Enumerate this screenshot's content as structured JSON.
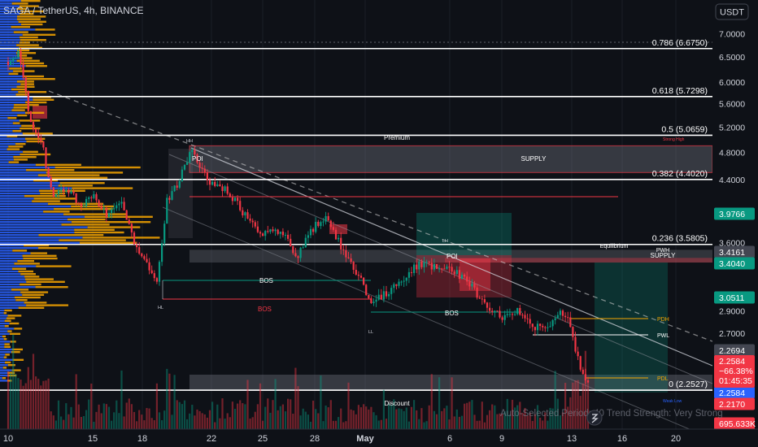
{
  "header": {
    "symbol": "SAGA / TetherUS, 4h, BINANCE",
    "currency_button": "USDT"
  },
  "fib_levels": [
    {
      "label": "0.786 (6.6750)",
      "price": 6.675
    },
    {
      "label": "0.618 (5.7298)",
      "price": 5.7298
    },
    {
      "label": "0.5 (5.0659)",
      "price": 5.0659
    },
    {
      "label": "0.382 (4.4020)",
      "price": 4.402
    },
    {
      "label": "0.236 (3.5805)",
      "price": 3.5805
    },
    {
      "label": "0 (2.2527)",
      "price": 2.2527
    }
  ],
  "annotations": {
    "premium": "Premium",
    "discount": "Discount",
    "supply_top": "SUPPLY",
    "supply_right": "SUPPLY",
    "equilibrium": "Equilibrium",
    "pwh": "PWH",
    "pdh": "PDH",
    "pwl": "PWL",
    "pdl": "PDL",
    "poi_1": "POI",
    "poi_2": "POI",
    "bos_1": "BOS",
    "bos_2": "BOS",
    "bos_3": "BOS",
    "hh": "HH",
    "hl": "HL",
    "ll": "LL",
    "lh": "LH",
    "strong_high": "Strong High",
    "weak_low": "Weak Low",
    "footer_text": "Auto-Selected Period: 40   Trend Strength: Very Strong"
  },
  "price_axis": {
    "ticks": [
      {
        "label": "7.0000",
        "price": 7.0
      },
      {
        "label": "6.5000",
        "price": 6.5
      },
      {
        "label": "6.0000",
        "price": 6.0
      },
      {
        "label": "5.6000",
        "price": 5.6
      },
      {
        "label": "5.2000",
        "price": 5.2
      },
      {
        "label": "4.8000",
        "price": 4.8
      },
      {
        "label": "4.4000",
        "price": 4.4
      },
      {
        "label": "3.6000",
        "price": 3.6
      },
      {
        "label": "2.9000",
        "price": 2.9
      },
      {
        "label": "2.7000",
        "price": 2.7
      }
    ],
    "badges": [
      {
        "label": "3.9766",
        "price": 3.9766,
        "color": "#089981"
      },
      {
        "label": "3.4161",
        "price": 3.4161,
        "color": "#434651"
      },
      {
        "label": "3.4040",
        "price": 3.404,
        "color": "#089981"
      },
      {
        "label": "3.0511",
        "price": 3.0511,
        "color": "#089981"
      },
      {
        "label": "2.2694",
        "price": 2.2694,
        "color": "#434651"
      },
      {
        "label": "2.2584",
        "price": 2.2584,
        "color": "#2962ff"
      },
      {
        "label": "2.2170",
        "price": 2.217,
        "color": "#f23645"
      },
      {
        "label": "695.633K",
        "price": 0,
        "color": "#f23645"
      }
    ],
    "last_price_box": {
      "price": "2.2584",
      "change": "−66.38%",
      "countdown": "01:45:35"
    }
  },
  "time_axis": [
    "10",
    "15",
    "18",
    "22",
    "25",
    "28",
    "May",
    "6",
    "9",
    "13",
    "16",
    "20"
  ],
  "colors": {
    "up": "#089981",
    "down": "#f23645",
    "blue": "#2962ff",
    "orange": "#f7a600",
    "background": "#0e1117"
  },
  "chart_data": {
    "type": "candlestick",
    "title": "SAGA / TetherUS, 4h, BINANCE",
    "ylim": [
      1.85,
      7.3
    ],
    "scale": "log",
    "price_key_points": [
      {
        "x": "Apr 10",
        "price": 6.4
      },
      {
        "x": "Apr 11",
        "price": 5.3
      },
      {
        "x": "Apr 12",
        "price": 4.2
      },
      {
        "x": "Apr 14",
        "price": 4.1
      },
      {
        "x": "Apr 16",
        "price": 3.95
      },
      {
        "x": "Apr 17",
        "price": 3.6
      },
      {
        "x": "Apr 19",
        "price": 3.15
      },
      {
        "x": "Apr 20",
        "price": 4.8
      },
      {
        "x": "Apr 22",
        "price": 4.2
      },
      {
        "x": "Apr 25",
        "price": 3.7
      },
      {
        "x": "Apr 28",
        "price": 3.7
      },
      {
        "x": "May 1",
        "price": 2.95
      },
      {
        "x": "May 4",
        "price": 3.35
      },
      {
        "x": "May 6",
        "price": 3.3
      },
      {
        "x": "May 8",
        "price": 2.95
      },
      {
        "x": "May 10",
        "price": 2.75
      },
      {
        "x": "May 12",
        "price": 2.85
      },
      {
        "x": "May 14",
        "price": 2.2584
      }
    ]
  }
}
